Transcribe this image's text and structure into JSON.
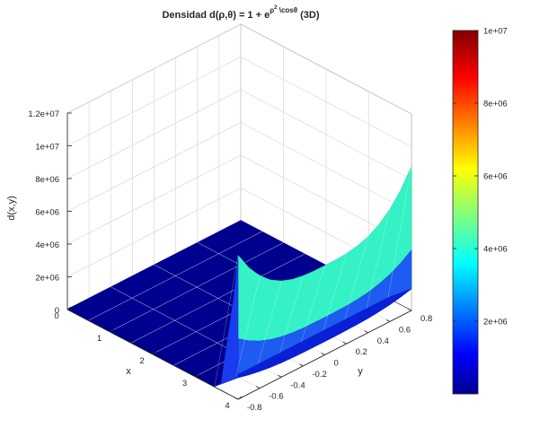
{
  "chart_data": {
    "type": "surface3d",
    "title": "Densidad d(ρ,θ) = 1 + e",
    "title_exp_rho": "ρ",
    "title_exp_sq": "2",
    "title_exp_rest": " \\cosθ",
    "title_suffix": " (3D)",
    "xlabel": "x",
    "ylabel": "y",
    "zlabel": "d(x,y)",
    "x_ticks": [
      "0",
      "1",
      "2",
      "3",
      "4"
    ],
    "y_ticks": [
      "-0.8",
      "-0.6",
      "-0.4",
      "-0.2",
      "0",
      "0.2",
      "0.4",
      "0.6",
      "0.8"
    ],
    "z_ticks": [
      "0",
      "2e+06",
      "4e+06",
      "6e+06",
      "8e+06",
      "1e+07",
      "1.2e+07"
    ],
    "zlim": [
      0,
      12000000
    ],
    "colormap": "jet",
    "colorbar": {
      "range": [
        0,
        10000000
      ],
      "ticks": [
        "2e+06",
        "4e+06",
        "6e+06",
        "8e+06",
        "1e+07"
      ]
    },
    "surface": {
      "flat_value": 1,
      "peak_value": 8800000,
      "peak_location": "x = 4, y = -0.8 to 0.8",
      "description_x": [
        0,
        4
      ],
      "description_y": [
        -0.8,
        0.8
      ]
    }
  }
}
